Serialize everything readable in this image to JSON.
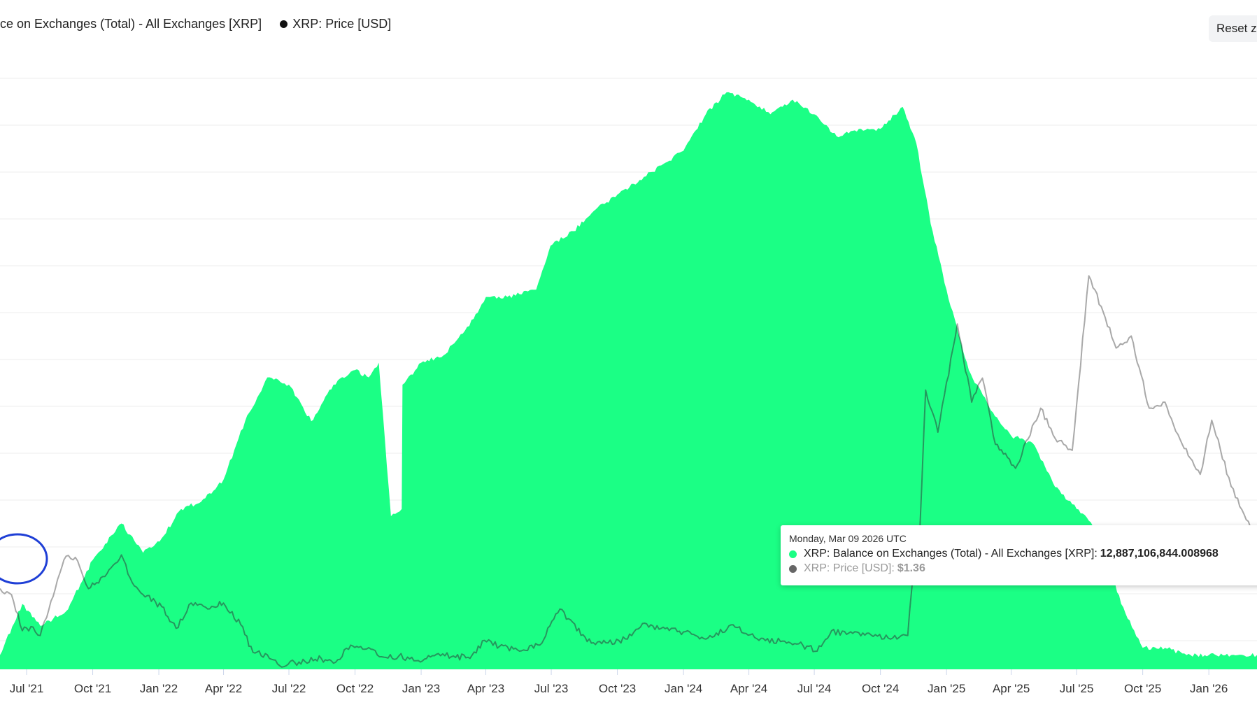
{
  "legend": {
    "balance_label": "ce on Exchanges (Total) - All Exchanges [XRP]",
    "price_label": "XRP: Price [USD]"
  },
  "reset_label": "Reset z",
  "tooltip": {
    "date": "Monday, Mar 09 2026 UTC",
    "balance_label": "XRP: Balance on Exchanges (Total) - All Exchanges [XRP]:",
    "balance_value": "12,887,106,844.008968",
    "price_label": "XRP: Price [USD]:",
    "price_value": "$1.36"
  },
  "colors": {
    "balance": "#1bff85",
    "price": "#a9a9a9",
    "price_over_fill": "#1e9c5c",
    "annotation_circle": "#1f3fd6",
    "grid": "#ececec"
  },
  "chart_data": {
    "type": "area",
    "x_axis": {
      "type": "date",
      "range": [
        "2021-05-25",
        "2026-03-09"
      ],
      "tick_labels": [
        "Jul '21",
        "Oct '21",
        "Jan '22",
        "Apr '22",
        "Jul '22",
        "Oct '22",
        "Jan '23",
        "Apr '23",
        "Jul '23",
        "Oct '23",
        "Jan '24",
        "Apr '24",
        "Jul '24",
        "Oct '24",
        "Jan '25",
        "Apr '25",
        "Jul '25",
        "Oct '25",
        "Jan '26"
      ]
    },
    "y_axis_labels_visible": false,
    "grid": true,
    "legend_position": "top-left",
    "series": [
      {
        "name": "XRP: Balance on Exchanges (Total) - All Exchanges [XRP]",
        "type": "area",
        "relative_scale": [
          0,
          1
        ],
        "points": [
          [
            "2021-05-25",
            0.23
          ],
          [
            "2021-06-25",
            0.3
          ],
          [
            "2021-07-20",
            0.27
          ],
          [
            "2021-08-25",
            0.29
          ],
          [
            "2021-10-01",
            0.36
          ],
          [
            "2021-11-10",
            0.41
          ],
          [
            "2021-12-10",
            0.37
          ],
          [
            "2022-01-05",
            0.39
          ],
          [
            "2022-02-01",
            0.43
          ],
          [
            "2022-03-01",
            0.44
          ],
          [
            "2022-04-01",
            0.47
          ],
          [
            "2022-05-01",
            0.55
          ],
          [
            "2022-06-01",
            0.61
          ],
          [
            "2022-07-01",
            0.6
          ],
          [
            "2022-08-01",
            0.55
          ],
          [
            "2022-09-01",
            0.6
          ],
          [
            "2022-10-01",
            0.62
          ],
          [
            "2022-10-20",
            0.61
          ],
          [
            "2022-11-03",
            0.63
          ],
          [
            "2022-11-20",
            0.42
          ],
          [
            "2022-12-05",
            0.43
          ],
          [
            "2022-12-06",
            0.6
          ],
          [
            "2023-01-01",
            0.63
          ],
          [
            "2023-02-01",
            0.64
          ],
          [
            "2023-03-15",
            0.69
          ],
          [
            "2023-04-01",
            0.72
          ],
          [
            "2023-05-01",
            0.72
          ],
          [
            "2023-06-10",
            0.73
          ],
          [
            "2023-06-30",
            0.79
          ],
          [
            "2023-08-01",
            0.81
          ],
          [
            "2023-09-01",
            0.84
          ],
          [
            "2023-10-01",
            0.86
          ],
          [
            "2023-11-01",
            0.88
          ],
          [
            "2023-12-01",
            0.9
          ],
          [
            "2024-01-01",
            0.92
          ],
          [
            "2024-02-01",
            0.97
          ],
          [
            "2024-03-01",
            1.0
          ],
          [
            "2024-04-01",
            0.99
          ],
          [
            "2024-05-01",
            0.97
          ],
          [
            "2024-06-01",
            0.99
          ],
          [
            "2024-07-01",
            0.97
          ],
          [
            "2024-08-01",
            0.94
          ],
          [
            "2024-09-01",
            0.95
          ],
          [
            "2024-10-01",
            0.95
          ],
          [
            "2024-11-01",
            0.98
          ],
          [
            "2024-11-20",
            0.93
          ],
          [
            "2024-12-10",
            0.82
          ],
          [
            "2025-01-01",
            0.73
          ],
          [
            "2025-02-01",
            0.62
          ],
          [
            "2025-03-01",
            0.57
          ],
          [
            "2025-04-01",
            0.53
          ],
          [
            "2025-05-01",
            0.52
          ],
          [
            "2025-06-01",
            0.46
          ],
          [
            "2025-07-01",
            0.43
          ],
          [
            "2025-08-01",
            0.4
          ],
          [
            "2025-09-01",
            0.3
          ],
          [
            "2025-10-01",
            0.24
          ],
          [
            "2025-11-01",
            0.24
          ],
          [
            "2025-12-01",
            0.23
          ],
          [
            "2026-01-01",
            0.23
          ],
          [
            "2026-02-01",
            0.23
          ],
          [
            "2026-03-09",
            0.23
          ]
        ]
      },
      {
        "name": "XRP: Price [USD]",
        "type": "line",
        "unit": "USD",
        "points": [
          [
            "2021-05-25",
            0.95
          ],
          [
            "2021-06-10",
            0.9
          ],
          [
            "2021-06-25",
            0.6
          ],
          [
            "2021-07-10",
            0.63
          ],
          [
            "2021-07-20",
            0.56
          ],
          [
            "2021-08-10",
            0.95
          ],
          [
            "2021-08-25",
            1.22
          ],
          [
            "2021-09-10",
            1.18
          ],
          [
            "2021-09-25",
            0.95
          ],
          [
            "2021-10-15",
            1.05
          ],
          [
            "2021-11-10",
            1.23
          ],
          [
            "2021-11-25",
            1.0
          ],
          [
            "2021-12-10",
            0.9
          ],
          [
            "2022-01-05",
            0.8
          ],
          [
            "2022-01-25",
            0.62
          ],
          [
            "2022-02-15",
            0.83
          ],
          [
            "2022-03-10",
            0.78
          ],
          [
            "2022-04-01",
            0.83
          ],
          [
            "2022-04-25",
            0.65
          ],
          [
            "2022-05-12",
            0.42
          ],
          [
            "2022-06-01",
            0.4
          ],
          [
            "2022-06-18",
            0.31
          ],
          [
            "2022-07-15",
            0.34
          ],
          [
            "2022-08-15",
            0.37
          ],
          [
            "2022-09-01",
            0.33
          ],
          [
            "2022-09-25",
            0.48
          ],
          [
            "2022-10-20",
            0.46
          ],
          [
            "2022-11-10",
            0.38
          ],
          [
            "2022-12-01",
            0.39
          ],
          [
            "2022-12-31",
            0.34
          ],
          [
            "2023-01-25",
            0.41
          ],
          [
            "2023-02-15",
            0.39
          ],
          [
            "2023-03-10",
            0.37
          ],
          [
            "2023-03-30",
            0.52
          ],
          [
            "2023-04-20",
            0.47
          ],
          [
            "2023-05-15",
            0.44
          ],
          [
            "2023-06-15",
            0.48
          ],
          [
            "2023-07-13",
            0.78
          ],
          [
            "2023-07-25",
            0.7
          ],
          [
            "2023-08-20",
            0.51
          ],
          [
            "2023-09-15",
            0.5
          ],
          [
            "2023-10-15",
            0.53
          ],
          [
            "2023-11-05",
            0.66
          ],
          [
            "2023-12-01",
            0.62
          ],
          [
            "2024-01-01",
            0.59
          ],
          [
            "2024-02-01",
            0.53
          ],
          [
            "2024-03-10",
            0.65
          ],
          [
            "2024-04-15",
            0.52
          ],
          [
            "2024-05-15",
            0.51
          ],
          [
            "2024-06-15",
            0.48
          ],
          [
            "2024-07-05",
            0.43
          ],
          [
            "2024-07-25",
            0.6
          ],
          [
            "2024-08-15",
            0.57
          ],
          [
            "2024-09-15",
            0.58
          ],
          [
            "2024-10-15",
            0.53
          ],
          [
            "2024-11-08",
            0.56
          ],
          [
            "2024-11-16",
            1.1
          ],
          [
            "2024-11-25",
            1.45
          ],
          [
            "2024-12-03",
            2.6
          ],
          [
            "2024-12-20",
            2.25
          ],
          [
            "2025-01-16",
            3.15
          ],
          [
            "2025-02-05",
            2.5
          ],
          [
            "2025-02-20",
            2.7
          ],
          [
            "2025-03-10",
            2.15
          ],
          [
            "2025-04-07",
            1.95
          ],
          [
            "2025-05-12",
            2.45
          ],
          [
            "2025-06-01",
            2.2
          ],
          [
            "2025-06-25",
            2.1
          ],
          [
            "2025-07-18",
            3.55
          ],
          [
            "2025-08-10",
            3.2
          ],
          [
            "2025-08-25",
            2.95
          ],
          [
            "2025-09-15",
            3.05
          ],
          [
            "2025-10-10",
            2.45
          ],
          [
            "2025-11-01",
            2.5
          ],
          [
            "2025-11-25",
            2.15
          ],
          [
            "2025-12-20",
            1.9
          ],
          [
            "2026-01-05",
            2.35
          ],
          [
            "2026-02-01",
            1.8
          ],
          [
            "2026-03-09",
            1.36
          ]
        ]
      }
    ]
  }
}
